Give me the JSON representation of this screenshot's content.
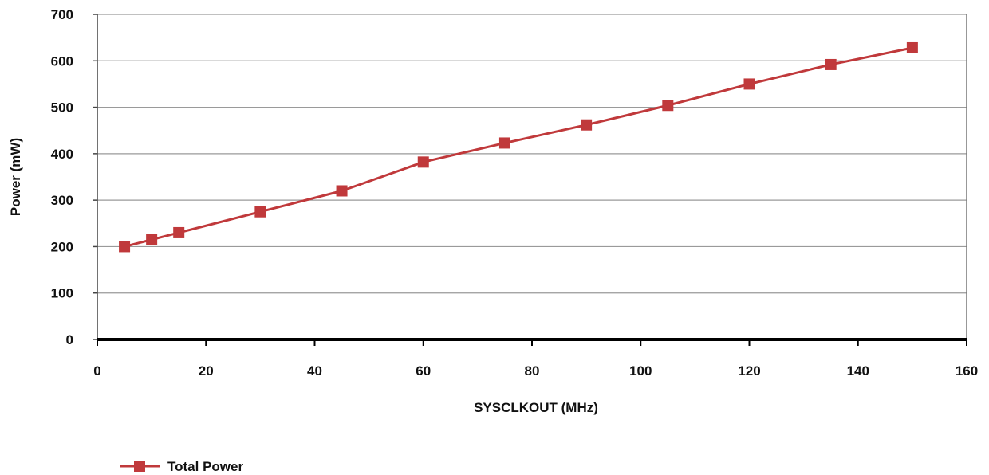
{
  "chart_data": {
    "type": "line",
    "title": "",
    "xlabel": "SYSCLKOUT (MHz)",
    "ylabel": "Power (mW)",
    "xlim": [
      0,
      160
    ],
    "ylim": [
      0,
      700
    ],
    "x_ticks": [
      0,
      20,
      40,
      60,
      80,
      100,
      120,
      140,
      160
    ],
    "y_ticks": [
      0,
      100,
      200,
      300,
      400,
      500,
      600,
      700
    ],
    "grid": "horizontal",
    "legend_position": "bottom-left",
    "series": [
      {
        "name": "Total Power",
        "color": "#c0393b",
        "marker": "square",
        "x": [
          5,
          10,
          15,
          30,
          45,
          60,
          75,
          90,
          105,
          120,
          135,
          150
        ],
        "y": [
          200,
          215,
          230,
          275,
          320,
          382,
          423,
          462,
          504,
          550,
          592,
          628
        ]
      }
    ]
  }
}
